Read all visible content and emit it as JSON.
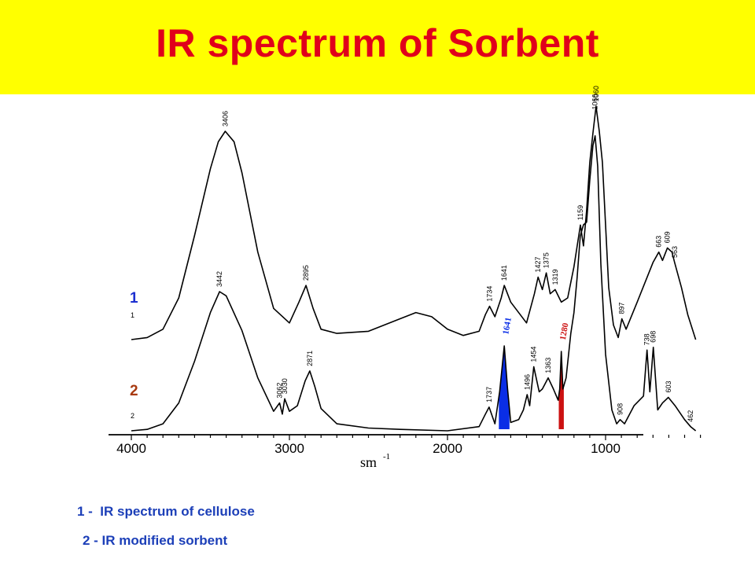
{
  "title": "IR spectrum of Sorbent",
  "legend": {
    "items": [
      "1 -  IR spectrum of cellulose",
      "2 - IR modified sorbent"
    ]
  },
  "colors": {
    "title_bg": "#ffff00",
    "title_text": "#e0001b",
    "legend_text": "#1c3fb8",
    "highlight_1641": "#0a2ee6",
    "highlight_1280": "#cc1111",
    "trace_label_1": "#1c2fd0",
    "trace_label_2": "#a83a10"
  },
  "chart_data": {
    "type": "line",
    "title": "IR spectrum of Sorbent",
    "xlabel": "sm",
    "xlabel_superscript": "-1",
    "ylabel": "",
    "x_reversed": true,
    "xlim": [
      4000,
      400
    ],
    "xticks": [
      4000,
      3000,
      2000,
      1000
    ],
    "grid": false,
    "series": [
      {
        "name": "1",
        "label_small": "1",
        "peaks": [
          "3406",
          "2895",
          "1734",
          "1641",
          "1427",
          "1375",
          "1319",
          "1159",
          "1060",
          "1066",
          "897",
          "663",
          "609",
          "563"
        ],
        "x": [
          4000,
          3900,
          3800,
          3700,
          3600,
          3500,
          3450,
          3406,
          3350,
          3300,
          3200,
          3100,
          3000,
          2940,
          2895,
          2850,
          2800,
          2700,
          2500,
          2300,
          2200,
          2100,
          2000,
          1900,
          1800,
          1760,
          1734,
          1700,
          1660,
          1641,
          1600,
          1500,
          1450,
          1427,
          1400,
          1375,
          1350,
          1319,
          1280,
          1240,
          1200,
          1159,
          1140,
          1120,
          1100,
          1080,
          1060,
          1040,
          1020,
          1000,
          980,
          950,
          920,
          897,
          870,
          800,
          700,
          663,
          640,
          609,
          580,
          563,
          520,
          480,
          430
        ],
        "y": [
          0,
          0.01,
          0.05,
          0.2,
          0.5,
          0.82,
          0.95,
          1.0,
          0.95,
          0.8,
          0.42,
          0.15,
          0.08,
          0.18,
          0.26,
          0.15,
          0.05,
          0.03,
          0.04,
          0.1,
          0.13,
          0.11,
          0.05,
          0.02,
          0.04,
          0.12,
          0.16,
          0.11,
          0.2,
          0.26,
          0.18,
          0.08,
          0.22,
          0.3,
          0.24,
          0.32,
          0.22,
          0.24,
          0.18,
          0.2,
          0.35,
          0.55,
          0.45,
          0.62,
          0.85,
          0.99,
          1.12,
          1.0,
          0.85,
          0.55,
          0.25,
          0.07,
          0.01,
          0.1,
          0.05,
          0.18,
          0.37,
          0.42,
          0.38,
          0.44,
          0.42,
          0.37,
          0.25,
          0.12,
          0.0
        ]
      },
      {
        "name": "2",
        "label_small": "2",
        "peaks": [
          "3442",
          "3062",
          "3030",
          "2871",
          "1737",
          "1641",
          "1496",
          "1454",
          "1363",
          "1280",
          "908",
          "738",
          "698",
          "603",
          "462"
        ],
        "highlighted_peaks": [
          "1641",
          "1280"
        ],
        "x": [
          4000,
          3900,
          3800,
          3700,
          3600,
          3500,
          3442,
          3400,
          3300,
          3200,
          3100,
          3062,
          3045,
          3030,
          3000,
          2950,
          2900,
          2871,
          2840,
          2800,
          2700,
          2500,
          2300,
          2000,
          1800,
          1760,
          1737,
          1700,
          1670,
          1641,
          1620,
          1600,
          1550,
          1520,
          1496,
          1480,
          1454,
          1420,
          1400,
          1363,
          1330,
          1300,
          1290,
          1280,
          1270,
          1250,
          1220,
          1200,
          1180,
          1160,
          1140,
          1120,
          1100,
          1080,
          1066,
          1050,
          1030,
          1000,
          960,
          930,
          908,
          880,
          820,
          760,
          738,
          720,
          698,
          670,
          640,
          603,
          560,
          500,
          462,
          430
        ],
        "y": [
          0,
          0.01,
          0.05,
          0.2,
          0.5,
          0.85,
          1.0,
          0.97,
          0.72,
          0.38,
          0.14,
          0.2,
          0.12,
          0.23,
          0.14,
          0.18,
          0.36,
          0.43,
          0.32,
          0.16,
          0.05,
          0.02,
          0.01,
          0.0,
          0.03,
          0.12,
          0.17,
          0.05,
          0.28,
          0.61,
          0.3,
          0.06,
          0.08,
          0.15,
          0.26,
          0.18,
          0.46,
          0.28,
          0.3,
          0.38,
          0.3,
          0.22,
          0.3,
          0.57,
          0.3,
          0.38,
          0.7,
          0.85,
          1.1,
          1.4,
          1.48,
          1.5,
          1.8,
          2.05,
          2.12,
          1.9,
          1.2,
          0.55,
          0.15,
          0.05,
          0.08,
          0.05,
          0.18,
          0.25,
          0.58,
          0.28,
          0.6,
          0.15,
          0.2,
          0.24,
          0.18,
          0.08,
          0.03,
          0.0
        ]
      }
    ]
  }
}
